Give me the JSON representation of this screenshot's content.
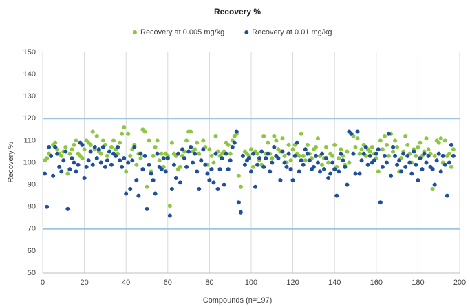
{
  "chart_data": {
    "type": "scatter",
    "title": "Recovery %",
    "xlabel": "Compounds (n=197)",
    "ylabel": "Recovery %",
    "xlim": [
      0,
      200
    ],
    "xticks": [
      0,
      20,
      40,
      60,
      80,
      100,
      120,
      140,
      160,
      180,
      200
    ],
    "ylim": [
      50,
      150
    ],
    "yticks": [
      50,
      60,
      70,
      80,
      90,
      100,
      110,
      120,
      130,
      140,
      150
    ],
    "grid": "x",
    "legend": "top",
    "reference_lines": {
      "values": [
        70,
        120
      ],
      "color": "#9dc3e6"
    },
    "x": [
      1,
      2,
      3,
      4,
      5,
      6,
      7,
      8,
      9,
      10,
      11,
      12,
      13,
      14,
      15,
      16,
      17,
      18,
      19,
      20,
      21,
      22,
      23,
      24,
      25,
      26,
      27,
      28,
      29,
      30,
      31,
      32,
      33,
      34,
      35,
      36,
      37,
      38,
      39,
      40,
      41,
      42,
      43,
      44,
      45,
      46,
      47,
      48,
      49,
      50,
      51,
      52,
      53,
      54,
      55,
      56,
      57,
      58,
      59,
      60,
      61,
      62,
      63,
      64,
      65,
      66,
      67,
      68,
      69,
      70,
      71,
      72,
      73,
      74,
      75,
      76,
      77,
      78,
      79,
      80,
      81,
      82,
      83,
      84,
      85,
      86,
      87,
      88,
      89,
      90,
      91,
      92,
      93,
      94,
      95,
      96,
      97,
      98,
      99,
      100,
      101,
      102,
      103,
      104,
      105,
      106,
      107,
      108,
      109,
      110,
      111,
      112,
      113,
      114,
      115,
      116,
      117,
      118,
      119,
      120,
      121,
      122,
      123,
      124,
      125,
      126,
      127,
      128,
      129,
      130,
      131,
      132,
      133,
      134,
      135,
      136,
      137,
      138,
      139,
      140,
      141,
      142,
      143,
      144,
      145,
      146,
      147,
      148,
      149,
      150,
      151,
      152,
      153,
      154,
      155,
      156,
      157,
      158,
      159,
      160,
      161,
      162,
      163,
      164,
      165,
      166,
      167,
      168,
      169,
      170,
      171,
      172,
      173,
      174,
      175,
      176,
      177,
      178,
      179,
      180,
      181,
      182,
      183,
      184,
      185,
      186,
      187,
      188,
      189,
      190,
      191,
      192,
      193,
      194,
      195,
      196,
      197
    ],
    "series": [
      {
        "name": "Recovery at 0.005 mg/kg",
        "color": "#8dc63f",
        "values": [
          101,
          102,
          104,
          103,
          108,
          109,
          106,
          104,
          103,
          105,
          107,
          95,
          104,
          106,
          108,
          110,
          104,
          103,
          102,
          106,
          110,
          109,
          108,
          114,
          106,
          112,
          105,
          104,
          110,
          108,
          103,
          105,
          107,
          110,
          106,
          104,
          109,
          113,
          116,
          96,
          113,
          103,
          106,
          108,
          99,
          104,
          102,
          115,
          114,
          89,
          110,
          96,
          103,
          107,
          110,
          101,
          104,
          98,
          104,
          103,
          80.5,
          109,
          104,
          103,
          97,
          98,
          103,
          105,
          110,
          114,
          114,
          105,
          106,
          109,
          104,
          101,
          110,
          107,
          99,
          106,
          103,
          100,
          112,
          105,
          103,
          104,
          105,
          109,
          108,
          104,
          110,
          112,
          113,
          94,
          89,
          103,
          105,
          104,
          103,
          106,
          98,
          105,
          104,
          101,
          99,
          112,
          104,
          109,
          104,
          102,
          112,
          110,
          106,
          105,
          111,
          103,
          100,
          108,
          101,
          106,
          108,
          104,
          103,
          113,
          103,
          101,
          108,
          104,
          102,
          106,
          107,
          111,
          103,
          99,
          102,
          107,
          100,
          104,
          103,
          108,
          98,
          102,
          106,
          103,
          99,
          105,
          100,
          113,
          112,
          107,
          111,
          104,
          106,
          108,
          103,
          106,
          105,
          107,
          104,
          102,
          96,
          110,
          106,
          112,
          108,
          103,
          113,
          105,
          110,
          107,
          96,
          102,
          105,
          112,
          108,
          104,
          100,
          106,
          103,
          107,
          109,
          103,
          105,
          111,
          106,
          104,
          88,
          103,
          110,
          109,
          111,
          100,
          110,
          103,
          104,
          98,
          106
        ]
      },
      {
        "name": "Recovery at 0.01 mg/kg",
        "color": "#1f4e9a",
        "values": [
          95,
          80,
          107,
          103,
          94,
          107,
          104,
          98,
          96,
          101,
          105,
          79,
          97,
          102,
          100,
          96,
          99,
          109,
          108,
          93,
          98,
          101,
          105,
          99,
          107,
          102,
          106,
          100,
          107,
          98,
          101,
          105,
          99,
          104,
          103,
          107,
          101,
          98,
          102,
          86,
          100,
          88,
          101,
          107,
          92,
          85,
          104,
          97,
          103,
          79,
          99,
          95,
          92,
          86,
          104,
          98,
          97,
          102,
          96,
          102,
          76,
          88,
          99,
          93,
          104,
          91,
          106,
          102,
          98,
          105,
          107,
          100,
          104,
          96,
          88,
          101,
          106,
          99,
          95,
          92,
          97,
          91,
          104,
          88,
          97,
          102,
          90,
          104,
          97,
          101,
          107,
          109,
          114,
          82,
          77.5,
          103,
          99,
          101,
          102,
          96,
          104,
          89,
          99,
          102,
          105,
          98,
          102,
          104,
          96,
          100,
          107,
          103,
          102,
          92,
          105,
          100,
          98,
          104,
          97,
          92,
          103,
          109,
          96,
          101,
          99,
          106,
          104,
          101,
          97,
          98,
          103,
          100,
          96,
          104,
          97,
          102,
          93,
          95,
          100,
          97,
          85,
          96,
          104,
          101,
          98,
          90,
          114,
          113,
          104,
          95,
          114,
          95,
          101,
          104,
          107,
          99,
          103,
          100,
          101,
          104,
          106,
          82,
          98,
          103,
          100,
          113,
          94,
          107,
          103,
          99,
          101,
          96,
          104,
          98,
          103,
          100,
          95,
          105,
          99,
          92,
          102,
          97,
          104,
          100,
          103,
          98,
          97,
          90,
          101,
          104,
          96,
          103,
          99,
          85,
          100,
          108,
          103
        ]
      }
    ]
  }
}
